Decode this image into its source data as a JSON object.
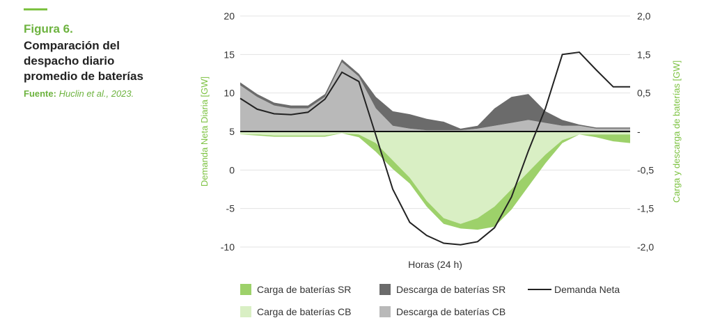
{
  "figure": {
    "label": "Figura 6.",
    "title_lines": [
      "Comparación del",
      "despacho diario",
      "promedio de baterías"
    ],
    "source_key": "Fuente:",
    "source_value": "Huclin et al., 2023."
  },
  "colors": {
    "accent": "#7dc242",
    "carga_sr": "#9dd16a",
    "carga_cb": "#d9efc4",
    "descarga_sr": "#6b6b6b",
    "descarga_cb": "#b9b9b9",
    "demanda": "#222222"
  },
  "chart_data": {
    "type": "area",
    "title": "Comparación del despacho diario promedio de baterías",
    "xlabel": "Horas (24 h)",
    "ylabel_left": "Demanda Neta Diaria [GW]",
    "ylabel_right": "Carga y descarga de baterías [GW]",
    "ylim_left": [
      -10,
      20
    ],
    "ylim_right": [
      -2.0,
      2.0
    ],
    "yticks_left": [
      "20",
      "15",
      "10",
      "5",
      "0",
      "-5",
      "-10"
    ],
    "yticks_right": [
      "2,0",
      "1,5",
      "0,5",
      "-",
      "-0,5",
      "-1,5",
      "-2,0"
    ],
    "grid": true,
    "legend_position": "bottom",
    "legend": [
      "Carga de baterías SR",
      "Descarga de baterías SR",
      "Demanda Neta",
      "Carga de baterías CB",
      "Descarga de baterías CB"
    ],
    "x": [
      0,
      1,
      2,
      3,
      4,
      5,
      6,
      7,
      8,
      9,
      10,
      11,
      12,
      13,
      14,
      15,
      16,
      17,
      18,
      19,
      20,
      21,
      22,
      23
    ],
    "series": [
      {
        "name": "Demanda Neta",
        "axis": "left",
        "values": [
          9.3,
          7.9,
          7.3,
          7.2,
          7.5,
          9.2,
          12.7,
          11.5,
          4.5,
          -2.5,
          -6.8,
          -8.5,
          -9.5,
          -9.7,
          -9.3,
          -7.5,
          -3.5,
          2.5,
          8.0,
          15.0,
          15.3,
          13.0,
          10.8,
          10.8
        ]
      },
      {
        "name": "Descarga de baterías CB",
        "axis": "right",
        "values": [
          0.8,
          0.6,
          0.45,
          0.4,
          0.4,
          0.6,
          1.2,
          0.95,
          0.4,
          0.1,
          0.05,
          0.02,
          0.02,
          0.02,
          0.05,
          0.1,
          0.15,
          0.2,
          0.15,
          0.1,
          0.1,
          0.05,
          0.05,
          0.05
        ]
      },
      {
        "name": "Descarga de baterías SR",
        "axis": "right",
        "values": [
          0.05,
          0.05,
          0.05,
          0.05,
          0.05,
          0.05,
          0.05,
          0.05,
          0.2,
          0.25,
          0.25,
          0.2,
          0.15,
          0.03,
          0.05,
          0.3,
          0.45,
          0.45,
          0.2,
          0.1,
          0.02,
          0.02,
          0.02,
          0.02
        ]
      },
      {
        "name": "Carga de baterías CB",
        "axis": "right",
        "values": [
          -0.05,
          -0.05,
          -0.07,
          -0.07,
          -0.07,
          -0.07,
          -0.03,
          -0.05,
          -0.2,
          -0.5,
          -0.8,
          -1.2,
          -1.5,
          -1.6,
          -1.5,
          -1.3,
          -1.0,
          -0.7,
          -0.4,
          -0.15,
          -0.05,
          -0.05,
          -0.05,
          -0.05
        ]
      },
      {
        "name": "Carga de baterías SR",
        "axis": "right",
        "values": [
          0.0,
          -0.02,
          -0.02,
          -0.02,
          -0.02,
          -0.02,
          0.0,
          -0.05,
          -0.15,
          -0.15,
          -0.1,
          -0.1,
          -0.1,
          -0.08,
          -0.2,
          -0.35,
          -0.35,
          -0.25,
          -0.15,
          -0.05,
          0.0,
          -0.05,
          -0.12,
          -0.15
        ]
      }
    ]
  }
}
